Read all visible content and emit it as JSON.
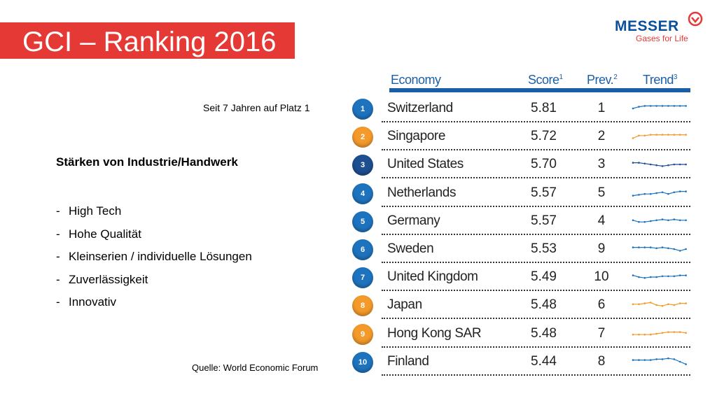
{
  "title": "GCI – Ranking 2016",
  "logo": {
    "word": "MESSER",
    "tagline": "Gases for Life",
    "icon": "messer-logo-icon"
  },
  "note": "Seit 7 Jahren auf Platz 1",
  "strengths_title": "Stärken von Industrie/Handwerk",
  "strengths": [
    "High Tech",
    "Hohe Qualität",
    "Kleinserien / individuelle Lösungen",
    "Zuverlässigkeit",
    "Innovativ"
  ],
  "source": "Quelle: World Economic Forum",
  "colors": {
    "title_band": "#e53935",
    "blue": "#1e73be",
    "orange": "#f39a2b",
    "navy": "#1d4f91",
    "logo_blue": "#0a4f9c"
  },
  "table": {
    "headers": {
      "economy": "Economy",
      "score": "Score",
      "score_sup": "1",
      "prev": "Prev.",
      "prev_sup": "2",
      "trend": "Trend",
      "trend_sup": "3"
    },
    "rows": [
      {
        "rank": "1",
        "country": "Switzerland",
        "score": "5.81",
        "prev": "1",
        "color": "#1e73be",
        "trend": [
          0.5,
          0.3,
          0.2,
          0.2,
          0.2,
          0.2,
          0.2,
          0.2,
          0.2,
          0.2
        ]
      },
      {
        "rank": "2",
        "country": "Singapore",
        "score": "5.72",
        "prev": "2",
        "color": "#f39a2b",
        "trend": [
          0.7,
          0.4,
          0.4,
          0.3,
          0.3,
          0.3,
          0.3,
          0.3,
          0.3,
          0.3
        ]
      },
      {
        "rank": "3",
        "country": "United States",
        "score": "5.70",
        "prev": "3",
        "color": "#1d4f91",
        "trend": [
          0.3,
          0.3,
          0.4,
          0.5,
          0.6,
          0.7,
          0.6,
          0.5,
          0.5,
          0.5
        ]
      },
      {
        "rank": "4",
        "country": "Netherlands",
        "score": "5.57",
        "prev": "5",
        "color": "#1e73be",
        "trend": [
          0.8,
          0.7,
          0.6,
          0.6,
          0.5,
          0.4,
          0.6,
          0.4,
          0.3,
          0.3
        ]
      },
      {
        "rank": "5",
        "country": "Germany",
        "score": "5.57",
        "prev": "4",
        "color": "#1e73be",
        "trend": [
          0.4,
          0.6,
          0.6,
          0.5,
          0.4,
          0.3,
          0.4,
          0.3,
          0.4,
          0.4
        ]
      },
      {
        "rank": "6",
        "country": "Sweden",
        "score": "5.53",
        "prev": "9",
        "color": "#1e73be",
        "trend": [
          0.3,
          0.3,
          0.3,
          0.3,
          0.4,
          0.3,
          0.4,
          0.5,
          0.7,
          0.5
        ]
      },
      {
        "rank": "7",
        "country": "United Kingdom",
        "score": "5.49",
        "prev": "10",
        "color": "#1e73be",
        "trend": [
          0.3,
          0.5,
          0.6,
          0.5,
          0.5,
          0.4,
          0.4,
          0.4,
          0.3,
          0.3
        ]
      },
      {
        "rank": "8",
        "country": "Japan",
        "score": "5.48",
        "prev": "6",
        "color": "#f39a2b",
        "trend": [
          0.4,
          0.4,
          0.3,
          0.2,
          0.5,
          0.6,
          0.4,
          0.5,
          0.3,
          0.3
        ]
      },
      {
        "rank": "9",
        "country": "Hong Kong SAR",
        "score": "5.48",
        "prev": "7",
        "color": "#f39a2b",
        "trend": [
          0.6,
          0.6,
          0.6,
          0.6,
          0.5,
          0.4,
          0.3,
          0.3,
          0.3,
          0.4
        ]
      },
      {
        "rank": "10",
        "country": "Finland",
        "score": "5.44",
        "prev": "8",
        "color": "#1e73be",
        "trend": [
          0.3,
          0.3,
          0.3,
          0.3,
          0.2,
          0.2,
          0.1,
          0.2,
          0.5,
          0.8
        ]
      }
    ]
  }
}
